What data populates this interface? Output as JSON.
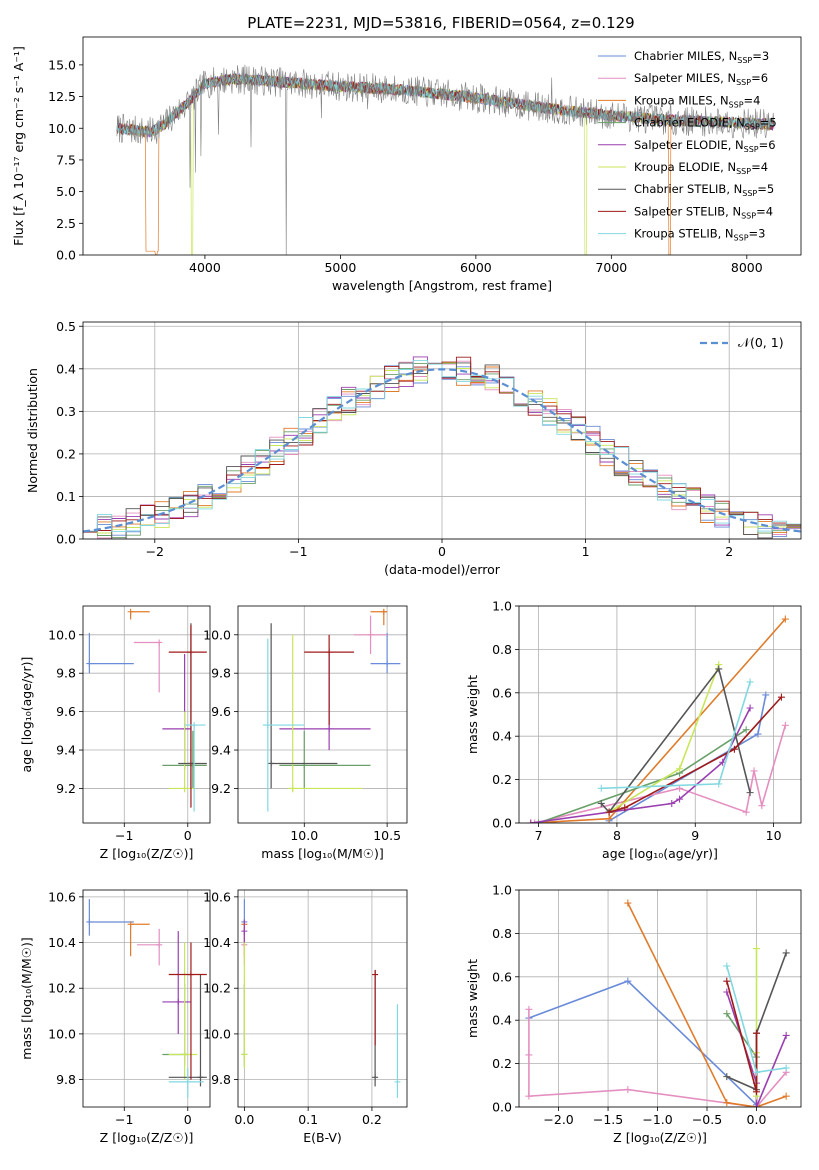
{
  "figure_title": "PLATE=2231, MJD=53816, FIBERID=0564, z=0.129",
  "series_names": [
    "Chabrier MILES",
    "Salpeter MILES",
    "Kroupa MILES",
    "Chabrier ELODIE",
    "Salpeter ELODIE",
    "Kroupa ELODIE",
    "Chabrier STELIB",
    "Salpeter STELIB",
    "Kroupa STELIB"
  ],
  "series_colors": [
    "#6a8bd8",
    "#e48fc0",
    "#e07b2a",
    "#6aa06a",
    "#9a3fb0",
    "#c8e65a",
    "#555555",
    "#a01a1a",
    "#82d8e0"
  ],
  "chart_data": [
    {
      "type": "line",
      "id": "spectrum",
      "title": "PLATE=2231, MJD=53816, FIBERID=0564, z=0.129",
      "xlabel": "wavelength [Angstrom, rest frame]",
      "ylabel": "Flux [f_λ 10⁻¹⁷ erg cm⁻² s⁻¹ A⁻¹]",
      "xlim": [
        3100,
        8400
      ],
      "ylim": [
        0,
        17.2
      ],
      "xticks": [
        4000,
        5000,
        6000,
        7000,
        8000
      ],
      "yticks": [
        0.0,
        2.5,
        5.0,
        7.5,
        10.0,
        12.5,
        15.0
      ],
      "ytick_labels": [
        "0.0",
        "2.5",
        "5.0",
        "7.5",
        "10.0",
        "12.5",
        "15.0"
      ],
      "grid": false,
      "legend_position": "top-right",
      "legend": [
        {
          "label": "Chabrier MILES, N",
          "sub": "SSP",
          "suffix": "=3"
        },
        {
          "label": "Salpeter MILES, N",
          "sub": "SSP",
          "suffix": "=6"
        },
        {
          "label": "Kroupa MILES, N",
          "sub": "SSP",
          "suffix": "=4"
        },
        {
          "label": "Chabrier ELODIE, N",
          "sub": "SSP",
          "suffix": "=5"
        },
        {
          "label": "Salpeter ELODIE, N",
          "sub": "SSP",
          "suffix": "=6"
        },
        {
          "label": "Kroupa ELODIE, N",
          "sub": "SSP",
          "suffix": "=4"
        },
        {
          "label": "Chabrier STELIB, N",
          "sub": "SSP",
          "suffix": "=5"
        },
        {
          "label": "Salpeter STELIB, N",
          "sub": "SSP",
          "suffix": "=4"
        },
        {
          "label": "Kroupa STELIB, N",
          "sub": "SSP",
          "suffix": "=3"
        }
      ],
      "continuum": {
        "x": [
          3350,
          3600,
          3700,
          3800,
          3900,
          4000,
          4200,
          4500,
          5000,
          5500,
          6000,
          6500,
          7000,
          7500,
          8000,
          8200
        ],
        "y": [
          10.0,
          9.7,
          10.3,
          11.3,
          12.3,
          13.5,
          13.9,
          13.7,
          13.3,
          13.0,
          12.4,
          11.6,
          11.0,
          10.6,
          10.4,
          10.3
        ]
      },
      "observed_spikes": [
        {
          "x": 3890,
          "y": 5.3
        },
        {
          "x": 3930,
          "y": 6.5
        },
        {
          "x": 3970,
          "y": 7.8
        },
        {
          "x": 4100,
          "y": 9.5
        },
        {
          "x": 4340,
          "y": 8.5
        },
        {
          "x": 4600,
          "y": 0.0
        },
        {
          "x": 4860,
          "y": 10.8
        },
        {
          "x": 5200,
          "y": 11.5
        },
        {
          "x": 6560,
          "y": 14.0
        }
      ],
      "dropouts": [
        {
          "x": 3640,
          "series": 2
        },
        {
          "x": 3905,
          "series": 5
        },
        {
          "x": 6810,
          "series": 5
        },
        {
          "x": 7430,
          "series": 2
        }
      ]
    },
    {
      "type": "histogram",
      "id": "residuals",
      "xlabel": "(data-model)/error",
      "ylabel": "Normed distribution",
      "xlim": [
        -2.5,
        2.5
      ],
      "ylim": [
        0,
        0.51
      ],
      "xticks": [
        -2,
        -1,
        0,
        1,
        2
      ],
      "xtick_labels": [
        "−2",
        "−1",
        "0",
        "1",
        "2"
      ],
      "yticks": [
        0.0,
        0.1,
        0.2,
        0.3,
        0.4,
        0.5
      ],
      "ytick_labels": [
        "0.0",
        "0.1",
        "0.2",
        "0.3",
        "0.4",
        "0.5"
      ],
      "grid": true,
      "bin_width": 0.1,
      "reference_label": "𝒩(0, 1)",
      "legend_position": "top-right"
    },
    {
      "type": "scatter",
      "id": "age-vs-Z",
      "xlabel": "Z [log₁₀(Z/Z☉)]",
      "ylabel": "age  [log₁₀(age/yr)]",
      "xlim": [
        -1.65,
        0.35
      ],
      "ylim": [
        9.02,
        10.15
      ],
      "xticks": [
        -1,
        0
      ],
      "xtick_labels": [
        "−1",
        "0"
      ],
      "yticks": [
        9.2,
        9.4,
        9.6,
        9.8,
        10.0
      ],
      "ytick_labels": [
        "9.2",
        "9.4",
        "9.6",
        "9.8",
        "10.0"
      ],
      "grid": true,
      "points": [
        {
          "s": 0,
          "x": -1.55,
          "y": 9.85,
          "xe": [
            -1.55,
            -0.85
          ],
          "ye": [
            9.8,
            10.01
          ]
        },
        {
          "s": 1,
          "x": -0.45,
          "y": 9.96,
          "xe": [
            -0.85,
            -0.45
          ],
          "ye": [
            9.7,
            9.96
          ]
        },
        {
          "s": 2,
          "x": -0.9,
          "y": 10.12,
          "xe": [
            -0.9,
            -0.6
          ],
          "ye": [
            10.08,
            10.12
          ]
        },
        {
          "s": 3,
          "x": 0.08,
          "y": 9.32,
          "xe": [
            -0.4,
            0.3
          ],
          "ye": [
            9.2,
            9.5
          ]
        },
        {
          "s": 4,
          "x": -0.05,
          "y": 9.51,
          "xe": [
            -0.4,
            0.05
          ],
          "ye": [
            9.3,
            9.9
          ]
        },
        {
          "s": 5,
          "x": -0.05,
          "y": 9.2,
          "xe": [
            -0.3,
            0.1
          ],
          "ye": [
            9.18,
            9.6
          ]
        },
        {
          "s": 6,
          "x": 0.05,
          "y": 9.33,
          "xe": [
            -0.15,
            0.3
          ],
          "ye": [
            9.2,
            10.06
          ]
        },
        {
          "s": 7,
          "x": 0.05,
          "y": 9.91,
          "xe": [
            -0.3,
            0.3
          ],
          "ye": [
            9.1,
            10.05
          ]
        },
        {
          "s": 8,
          "x": 0.1,
          "y": 9.53,
          "xe": [
            -0.05,
            0.28
          ],
          "ye": [
            9.08,
            9.53
          ]
        }
      ]
    },
    {
      "type": "scatter",
      "id": "age-vs-mass",
      "xlabel": "mass [log₁₀(M/M☉)]",
      "ylabel": "",
      "xlim": [
        9.6,
        10.62
      ],
      "ylim": [
        9.02,
        10.15
      ],
      "xticks": [
        10.0,
        10.5
      ],
      "xtick_labels": [
        "10.0",
        "10.5"
      ],
      "yticks": [
        9.2,
        9.4,
        9.6,
        9.8,
        10.0
      ],
      "ytick_labels": [
        "9.2",
        "9.4",
        "9.6",
        "9.8",
        "10.0"
      ],
      "grid": true,
      "points": [
        {
          "s": 0,
          "x": 10.5,
          "y": 9.85,
          "xe": [
            10.4,
            10.58
          ],
          "ye": [
            9.8,
            10.01
          ]
        },
        {
          "s": 1,
          "x": 10.4,
          "y": 10.0,
          "xe": [
            10.3,
            10.5
          ],
          "ye": [
            9.9,
            10.1
          ]
        },
        {
          "s": 2,
          "x": 10.48,
          "y": 10.12,
          "xe": [
            10.4,
            10.5
          ],
          "ye": [
            10.05,
            10.13
          ]
        },
        {
          "s": 3,
          "x": 10.0,
          "y": 9.32,
          "xe": [
            9.85,
            10.4
          ],
          "ye": [
            9.2,
            9.5
          ]
        },
        {
          "s": 4,
          "x": 10.15,
          "y": 9.51,
          "xe": [
            9.85,
            10.4
          ],
          "ye": [
            9.4,
            9.9
          ]
        },
        {
          "s": 5,
          "x": 9.93,
          "y": 9.2,
          "xe": [
            9.9,
            10.35
          ],
          "ye": [
            9.18,
            10.0
          ]
        },
        {
          "s": 6,
          "x": 9.8,
          "y": 9.33,
          "xe": [
            9.8,
            10.2
          ],
          "ye": [
            9.2,
            10.06
          ]
        },
        {
          "s": 7,
          "x": 10.15,
          "y": 9.91,
          "xe": [
            10.0,
            10.3
          ],
          "ye": [
            9.53,
            10.0
          ]
        },
        {
          "s": 8,
          "x": 9.78,
          "y": 9.53,
          "xe": [
            9.75,
            10.0
          ],
          "ye": [
            9.08,
            9.98
          ]
        }
      ]
    },
    {
      "type": "line",
      "id": "mass-weight-vs-age",
      "xlabel": "age  [log₁₀(age/yr)]",
      "ylabel": "mass weight",
      "xlim": [
        6.75,
        10.35
      ],
      "ylim": [
        0,
        1.0
      ],
      "xticks": [
        7,
        8,
        9,
        10
      ],
      "xtick_labels": [
        "7",
        "8",
        "9",
        "10"
      ],
      "yticks": [
        0.0,
        0.2,
        0.4,
        0.6,
        0.8,
        1.0
      ],
      "ytick_labels": [
        "0.0",
        "0.2",
        "0.4",
        "0.6",
        "0.8",
        "1.0"
      ],
      "grid": true,
      "series": [
        {
          "s": 0,
          "x": [
            7.9,
            9.8,
            9.9
          ],
          "y": [
            0.01,
            0.41,
            0.59
          ]
        },
        {
          "s": 1,
          "x": [
            6.95,
            8.8,
            9.65,
            9.75,
            9.85,
            10.15
          ],
          "y": [
            0.0,
            0.16,
            0.05,
            0.24,
            0.08,
            0.45
          ]
        },
        {
          "s": 2,
          "x": [
            6.9,
            7.9,
            10.15
          ],
          "y": [
            0.0,
            0.02,
            0.94
          ]
        },
        {
          "s": 3,
          "x": [
            7.0,
            8.8,
            9.65
          ],
          "y": [
            0.0,
            0.23,
            0.43
          ]
        },
        {
          "s": 4,
          "x": [
            6.9,
            8.7,
            8.8,
            9.35,
            9.7
          ],
          "y": [
            0.0,
            0.09,
            0.11,
            0.28,
            0.53
          ]
        },
        {
          "s": 5,
          "x": [
            7.9,
            8.8,
            9.3
          ],
          "y": [
            0.05,
            0.25,
            0.73
          ]
        },
        {
          "s": 6,
          "x": [
            7.8,
            7.9,
            9.3,
            9.7
          ],
          "y": [
            0.09,
            0.05,
            0.71,
            0.14
          ]
        },
        {
          "s": 7,
          "x": [
            7.9,
            8.1,
            9.5,
            10.1
          ],
          "y": [
            0.05,
            0.07,
            0.34,
            0.58
          ]
        },
        {
          "s": 8,
          "x": [
            7.8,
            9.3,
            9.7
          ],
          "y": [
            0.16,
            0.18,
            0.65
          ]
        }
      ]
    },
    {
      "type": "scatter",
      "id": "mass-vs-Z",
      "xlabel": "Z [log₁₀(Z/Z☉)]",
      "ylabel": "mass [log₁₀(M/M☉)]",
      "xlim": [
        -1.65,
        0.35
      ],
      "ylim": [
        9.68,
        10.63
      ],
      "xticks": [
        -1,
        0
      ],
      "xtick_labels": [
        "−1",
        "0"
      ],
      "yticks": [
        9.8,
        10.0,
        10.2,
        10.4,
        10.6
      ],
      "ytick_labels": [
        "9.8",
        "10.0",
        "10.2",
        "10.4",
        "10.6"
      ],
      "grid": true,
      "points": [
        {
          "s": 0,
          "x": -1.55,
          "y": 10.49,
          "xe": [
            -1.55,
            -0.85
          ],
          "ye": [
            10.43,
            10.59
          ]
        },
        {
          "s": 1,
          "x": -0.45,
          "y": 10.39,
          "xe": [
            -0.8,
            -0.45
          ],
          "ye": [
            10.3,
            10.46
          ]
        },
        {
          "s": 2,
          "x": -0.9,
          "y": 10.48,
          "xe": [
            -0.9,
            -0.6
          ],
          "ye": [
            10.34,
            10.48
          ]
        },
        {
          "s": 3,
          "x": -0.05,
          "y": 9.91,
          "xe": [
            -0.4,
            0.0
          ],
          "ye": [
            9.86,
            10.22
          ]
        },
        {
          "s": 4,
          "x": -0.15,
          "y": 10.14,
          "xe": [
            -0.4,
            0.05
          ],
          "ye": [
            10.0,
            10.45
          ]
        },
        {
          "s": 5,
          "x": -0.05,
          "y": 9.91,
          "xe": [
            -0.3,
            0.15
          ],
          "ye": [
            9.8,
            10.4
          ]
        },
        {
          "s": 6,
          "x": 0.2,
          "y": 9.81,
          "xe": [
            -0.3,
            0.3
          ],
          "ye": [
            9.77,
            10.26
          ]
        },
        {
          "s": 7,
          "x": 0.05,
          "y": 10.26,
          "xe": [
            -0.3,
            0.3
          ],
          "ye": [
            9.8,
            10.4
          ]
        },
        {
          "s": 8,
          "x": 0.0,
          "y": 9.79,
          "xe": [
            -0.3,
            0.25
          ],
          "ye": [
            9.72,
            9.85
          ]
        }
      ]
    },
    {
      "type": "scatter",
      "id": "mass-vs-EBV",
      "xlabel": "E(B-V)",
      "ylabel": "",
      "xlim": [
        -0.01,
        0.255
      ],
      "ylim": [
        9.68,
        10.63
      ],
      "xticks": [
        0.0,
        0.1,
        0.2
      ],
      "xtick_labels": [
        "0.0",
        "0.1",
        "0.2"
      ],
      "yticks": [
        9.8,
        10.0,
        10.2,
        10.4,
        10.6
      ],
      "ytick_labels": [
        "9.8",
        "10.0",
        "10.2",
        "10.4",
        "10.6"
      ],
      "grid": true,
      "points": [
        {
          "s": 0,
          "x": 0.0,
          "y": 10.49,
          "ye": [
            10.43,
            10.59
          ]
        },
        {
          "s": 1,
          "x": 0.0,
          "y": 10.39,
          "ye": [
            10.3,
            10.46
          ]
        },
        {
          "s": 2,
          "x": 0.0,
          "y": 10.48,
          "ye": [
            10.34,
            10.48
          ]
        },
        {
          "s": 3,
          "x": 0.0,
          "y": 9.91,
          "ye": [
            9.86,
            10.22
          ]
        },
        {
          "s": 4,
          "x": 0.0,
          "y": 10.45,
          "ye": [
            10.4,
            10.5
          ]
        },
        {
          "s": 5,
          "x": 0.0,
          "y": 9.91,
          "ye": [
            9.85,
            10.4
          ]
        },
        {
          "s": 6,
          "x": 0.205,
          "y": 9.81,
          "ye": [
            9.77,
            10.28
          ]
        },
        {
          "s": 7,
          "x": 0.205,
          "y": 10.26,
          "ye": [
            9.95,
            10.28
          ]
        },
        {
          "s": 8,
          "x": 0.24,
          "y": 9.79,
          "ye": [
            9.72,
            10.13
          ]
        }
      ]
    },
    {
      "type": "line",
      "id": "mass-weight-vs-Z",
      "xlabel": "Z [log₁₀(Z/Z☉)]",
      "ylabel": "mass weight",
      "xlim": [
        -2.4,
        0.45
      ],
      "ylim": [
        0,
        1.0
      ],
      "xticks": [
        -2.0,
        -1.5,
        -1.0,
        -0.5,
        0.0
      ],
      "xtick_labels": [
        "−2.0",
        "−1.5",
        "−1.0",
        "−0.5",
        "0.0"
      ],
      "yticks": [
        0.0,
        0.2,
        0.4,
        0.6,
        0.8,
        1.0
      ],
      "ytick_labels": [
        "0.0",
        "0.2",
        "0.4",
        "0.6",
        "0.8",
        "1.0"
      ],
      "grid": true,
      "series": [
        {
          "s": 0,
          "x": [
            -2.3,
            -1.3,
            0.0
          ],
          "y": [
            0.41,
            0.58,
            0.01
          ]
        },
        {
          "s": 1,
          "x": [
            -2.3,
            -2.3,
            -2.3,
            -1.3,
            0.0,
            0.3
          ],
          "y": [
            0.45,
            0.24,
            0.05,
            0.08,
            0.0,
            0.16
          ]
        },
        {
          "s": 2,
          "x": [
            -1.3,
            -0.3,
            0.0,
            0.3
          ],
          "y": [
            0.94,
            0.02,
            0.0,
            0.05
          ]
        },
        {
          "s": 3,
          "x": [
            -0.3,
            0.0,
            0.0
          ],
          "y": [
            0.43,
            0.23,
            0.0
          ]
        },
        {
          "s": 4,
          "x": [
            -0.3,
            0.0,
            0.0,
            0.3
          ],
          "y": [
            0.53,
            0.11,
            0.0,
            0.33
          ]
        },
        {
          "s": 5,
          "x": [
            0.0,
            0.0,
            0.0
          ],
          "y": [
            0.73,
            0.25,
            0.05
          ]
        },
        {
          "s": 6,
          "x": [
            -0.3,
            0.0,
            0.0,
            0.3
          ],
          "y": [
            0.14,
            0.08,
            0.34,
            0.71
          ]
        },
        {
          "s": 7,
          "x": [
            -0.3,
            0.0,
            0.0
          ],
          "y": [
            0.58,
            0.07,
            0.34
          ]
        },
        {
          "s": 8,
          "x": [
            -0.3,
            0.0,
            0.3
          ],
          "y": [
            0.65,
            0.16,
            0.18
          ]
        }
      ]
    }
  ]
}
